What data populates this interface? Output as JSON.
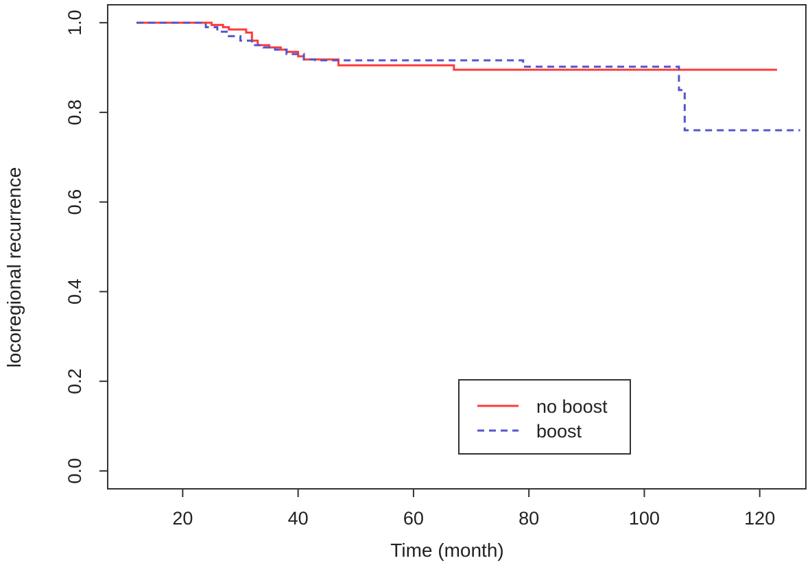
{
  "chart_data": {
    "type": "line",
    "title": "",
    "xlabel": "Time (month)",
    "ylabel": "locoregional recurrence",
    "xlim": [
      7,
      128
    ],
    "ylim": [
      -0.04,
      1.04
    ],
    "xticks": [
      20,
      40,
      60,
      80,
      100,
      120
    ],
    "yticks": [
      0.0,
      0.2,
      0.4,
      0.6,
      0.8,
      1.0
    ],
    "xtick_labels": [
      "20",
      "40",
      "60",
      "80",
      "100",
      "120"
    ],
    "ytick_labels": [
      "0.0",
      "0.2",
      "0.4",
      "0.6",
      "0.8",
      "1.0"
    ],
    "grid": false,
    "legend_position": "bottom-right",
    "series": [
      {
        "name": "no boost",
        "color": "#ff3b3b",
        "style": "solid",
        "x": [
          12,
          24,
          25,
          27,
          28,
          31,
          32,
          33,
          35,
          37,
          38,
          40,
          41,
          47,
          67,
          123
        ],
        "y": [
          1.0,
          1.0,
          0.995,
          0.99,
          0.985,
          0.978,
          0.96,
          0.95,
          0.945,
          0.94,
          0.935,
          0.925,
          0.918,
          0.905,
          0.895,
          0.895
        ]
      },
      {
        "name": "boost",
        "color": "#5555cc",
        "style": "dashed",
        "x": [
          12,
          22,
          24,
          26,
          28,
          30,
          32,
          34,
          36,
          38,
          41,
          43,
          79,
          106,
          107,
          127
        ],
        "y": [
          1.0,
          1.0,
          0.99,
          0.98,
          0.97,
          0.96,
          0.95,
          0.945,
          0.94,
          0.93,
          0.918,
          0.916,
          0.902,
          0.85,
          0.76,
          0.76
        ]
      }
    ]
  }
}
